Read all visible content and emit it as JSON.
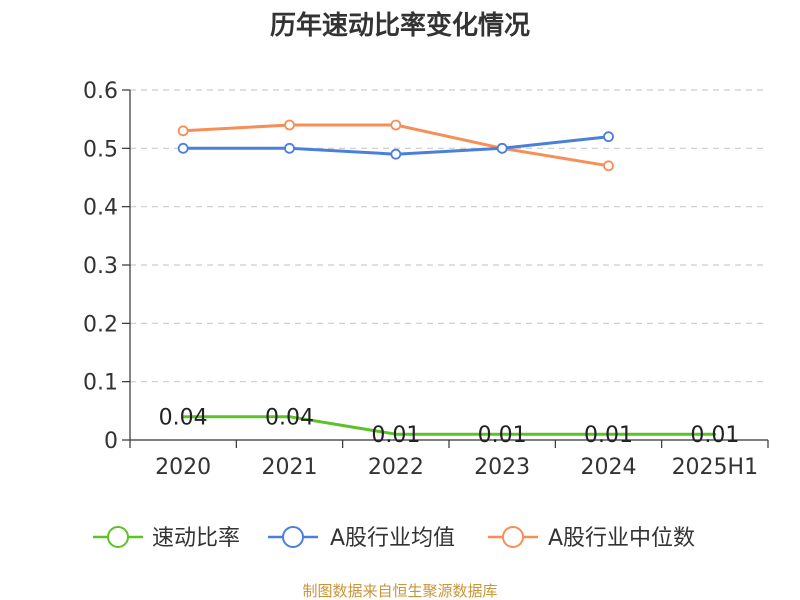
{
  "chart_data": {
    "type": "line",
    "title": "历年速动比率变化情况",
    "categories": [
      "2020",
      "2021",
      "2022",
      "2023",
      "2024",
      "2025H1"
    ],
    "ylim": [
      0,
      0.6
    ],
    "yticks": [
      "0",
      "0.1",
      "0.2",
      "0.3",
      "0.4",
      "0.5",
      "0.6"
    ],
    "grid": true,
    "legend_position": "bottom",
    "series": [
      {
        "name": "速动比率",
        "color": "#5cc228",
        "values": [
          0.04,
          0.04,
          0.01,
          0.01,
          0.01,
          0.01
        ],
        "labels": [
          "0.04",
          "0.04",
          "0.01",
          "0.01",
          "0.01",
          "0.01"
        ],
        "markers": false
      },
      {
        "name": "A股行业均值",
        "color": "#4a7fdb",
        "values": [
          0.5,
          0.5,
          0.49,
          0.5,
          0.52,
          null
        ],
        "markers": true
      },
      {
        "name": "A股行业中位数",
        "color": "#f88e57",
        "values": [
          0.53,
          0.54,
          0.54,
          0.5,
          0.47,
          null
        ],
        "markers": true
      }
    ],
    "source": "制图数据来自恒生聚源数据库"
  }
}
